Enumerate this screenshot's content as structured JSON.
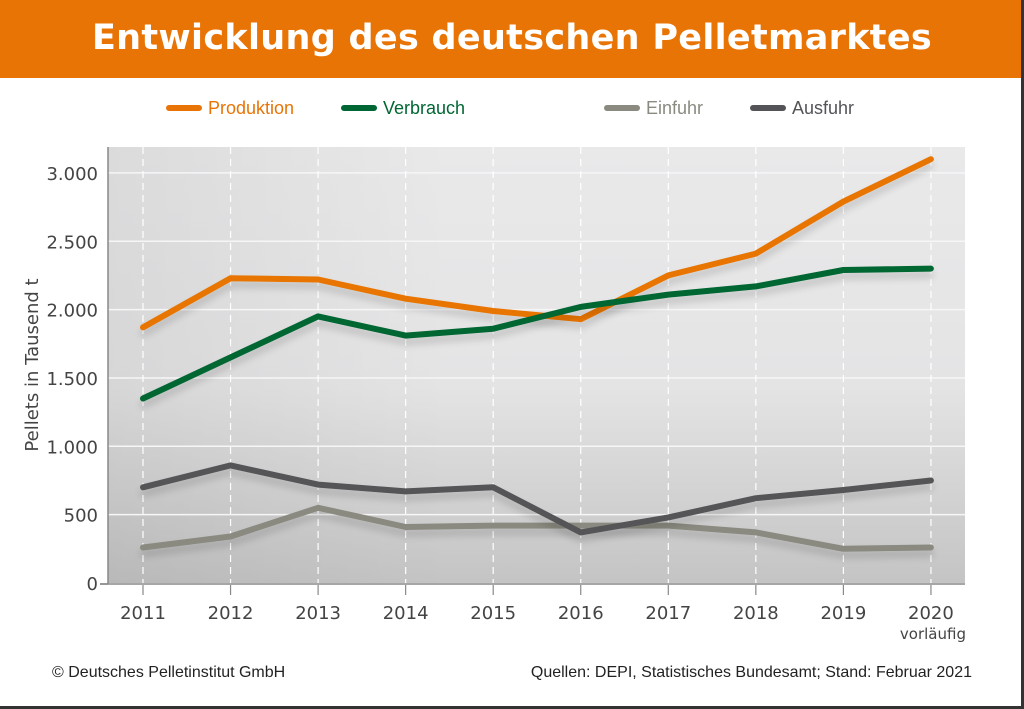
{
  "title": "Entwicklung des deutschen Pelletmarktes",
  "legend": [
    {
      "label": "Produktion",
      "color": "#e87406"
    },
    {
      "label": "Verbrauch",
      "color": "#006633"
    },
    {
      "label": "Einfuhr",
      "color": "#8a8a80"
    },
    {
      "label": "Ausfuhr",
      "color": "#545458"
    }
  ],
  "footer": {
    "copyright": "© Deutsches Pelletinstitut GmbH",
    "sources": "Quellen: DEPI, Statistisches Bundesamt; Stand: Februar 2021"
  },
  "chart_data": {
    "type": "line",
    "title": "Entwicklung des deutschen Pelletmarktes",
    "xlabel": "",
    "ylabel": "Pellets in Tausend t",
    "x": [
      "2011",
      "2012",
      "2013",
      "2014",
      "2015",
      "2016",
      "2017",
      "2018",
      "2019",
      "2020"
    ],
    "x_sublabels": {
      "2020": "vorläufig"
    },
    "ylim": [
      0,
      3200
    ],
    "yticks": [
      0,
      500,
      1000,
      1500,
      2000,
      2500,
      3000
    ],
    "ytick_labels": [
      "0",
      "500",
      "1.000",
      "1.500",
      "2.000",
      "2.500",
      "3.000"
    ],
    "grid": true,
    "legend_position": "top",
    "series": [
      {
        "name": "Produktion",
        "color": "#e87406",
        "values": [
          1870,
          2230,
          2220,
          2080,
          1990,
          1930,
          2250,
          2410,
          2790,
          3100
        ]
      },
      {
        "name": "Verbrauch",
        "color": "#006633",
        "values": [
          1350,
          1650,
          1950,
          1810,
          1860,
          2020,
          2110,
          2170,
          2290,
          2300
        ]
      },
      {
        "name": "Einfuhr",
        "color": "#8a8a80",
        "values": [
          260,
          340,
          550,
          410,
          420,
          420,
          420,
          370,
          250,
          260
        ]
      },
      {
        "name": "Ausfuhr",
        "color": "#545458",
        "values": [
          700,
          860,
          720,
          670,
          700,
          370,
          480,
          620,
          680,
          750
        ]
      }
    ]
  }
}
